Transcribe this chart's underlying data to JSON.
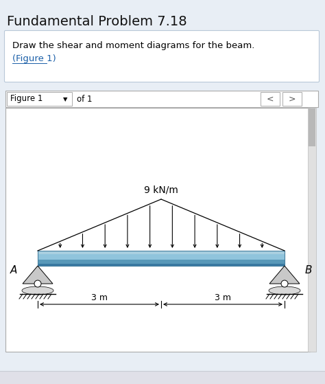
{
  "title": "Fundamental Problem 7.18",
  "problem_text": "Draw the shear and moment diagrams for the beam.",
  "figure_link": "(Figure 1)",
  "figure_label": "Figure 1",
  "of_label": "of 1",
  "load_label": "9 kN/m",
  "dim_left": "3 m",
  "dim_right": "3 m",
  "label_A": "A",
  "label_B": "B",
  "bg_color": "#e8eef5",
  "beam_color_light": "#a8cfe0",
  "beam_color_mid": "#7ab8d4",
  "beam_color_dark": "#5898b8",
  "beam_edge_color": "#4880a0",
  "title_color": "#111111",
  "link_color": "#1a5fa8",
  "white": "#ffffff",
  "nav_bg": "#f0f0f0",
  "nav_border": "#aaaaaa",
  "scrollbar_bg": "#cccccc",
  "scrollbar_thumb": "#aaaaaa",
  "support_fill": "#c8c8c8",
  "support_base": "#d8d8d8",
  "panel_border": "#b8c8d8",
  "fig_area_bg": "#f8f8ff",
  "bottom_strip": "#e0e0e8"
}
